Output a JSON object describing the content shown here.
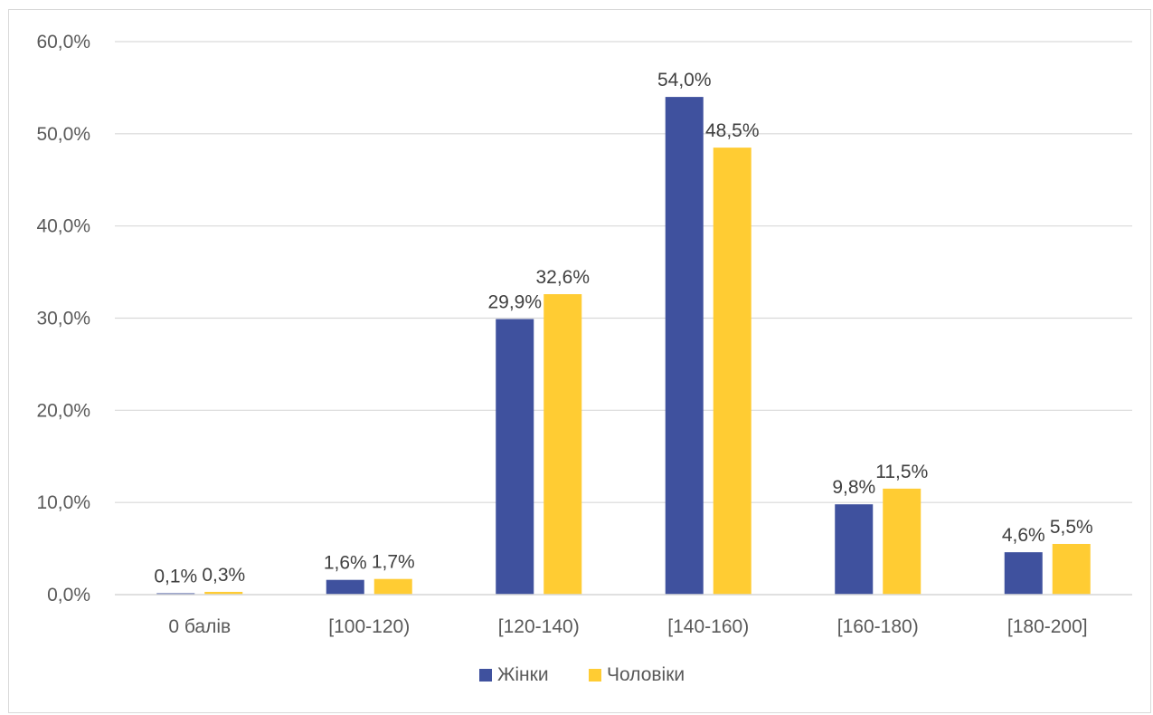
{
  "chart_data": {
    "type": "bar",
    "categories": [
      "0 балів",
      "[100-120)",
      "[120-140)",
      "[140-160)",
      "[160-180)",
      "[180-200]"
    ],
    "series": [
      {
        "name": "Жінки",
        "color": "#3f519e",
        "values": [
          0.1,
          1.6,
          29.9,
          54.0,
          9.8,
          4.6
        ],
        "labels": [
          "0,1%",
          "1,6%",
          "29,9%",
          "54,0%",
          "9,8%",
          "4,6%"
        ]
      },
      {
        "name": "Чоловіки",
        "color": "#ffcc33",
        "values": [
          0.3,
          1.7,
          32.6,
          48.5,
          11.5,
          5.5
        ],
        "labels": [
          "0,3%",
          "1,7%",
          "32,6%",
          "48,5%",
          "11,5%",
          "5,5%"
        ]
      }
    ],
    "y_ticks": [
      0,
      10,
      20,
      30,
      40,
      50,
      60
    ],
    "y_tick_labels": [
      "0,0%",
      "10,0%",
      "20,0%",
      "30,0%",
      "40,0%",
      "50,0%",
      "60,0%"
    ],
    "ylim": [
      0,
      60
    ],
    "title": "",
    "xlabel": "",
    "ylabel": "",
    "grid": true,
    "legend_position": "bottom",
    "gridline_color": "#d9d9d9"
  }
}
